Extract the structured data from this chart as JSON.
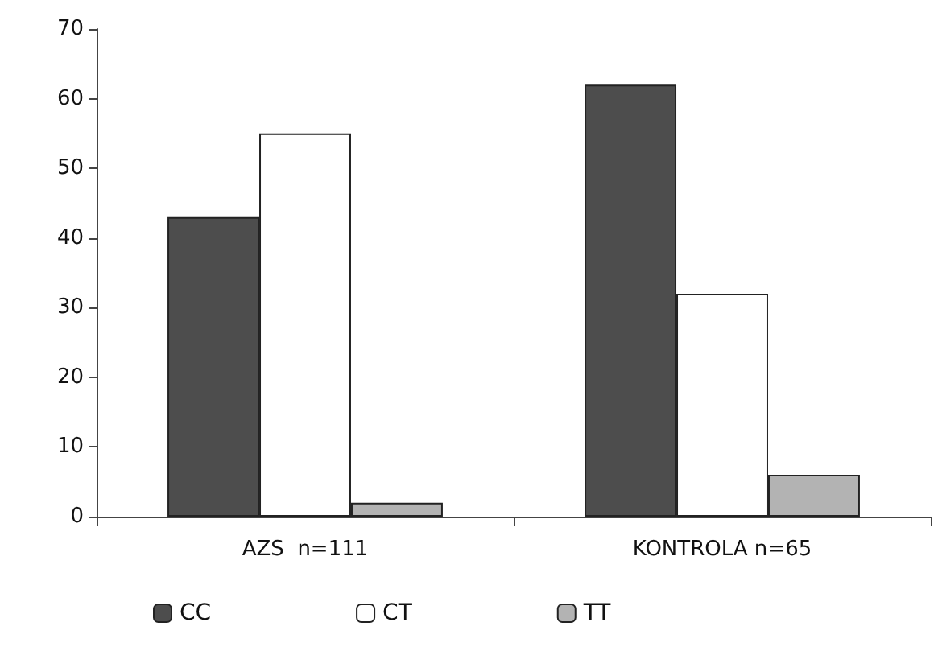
{
  "chart_data": {
    "type": "bar",
    "categories": [
      "AZS  n=111",
      "KONTROLA n=65"
    ],
    "series": [
      {
        "name": "CC",
        "color": "#4d4d4d",
        "values": [
          43,
          62
        ]
      },
      {
        "name": "CT",
        "color": "#ffffff",
        "values": [
          55,
          32
        ]
      },
      {
        "name": "TT",
        "color": "#b3b3b3",
        "values": [
          2,
          6
        ]
      }
    ],
    "ylim": [
      0,
      70
    ],
    "yticks": [
      0,
      10,
      20,
      30,
      40,
      50,
      60,
      70
    ],
    "grid": false,
    "legend": "bottom"
  }
}
